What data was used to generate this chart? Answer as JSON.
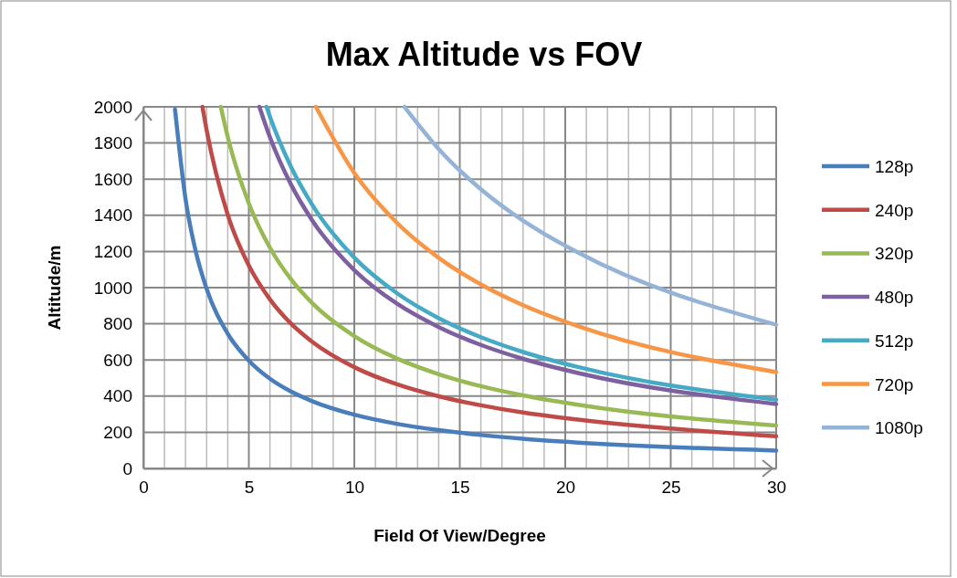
{
  "chart_data": {
    "type": "line",
    "title": "Max Altitude vs FOV",
    "xlabel": "Field Of View/Degree",
    "ylabel": "Altitude/m",
    "xlim": [
      0,
      30
    ],
    "ylim": [
      0,
      2000
    ],
    "xticks": [
      0,
      {
        "value": 1,
        "label": null
      },
      {
        "value": 2,
        "label": null
      },
      {
        "value": 3,
        "label": null
      },
      {
        "value": 4,
        "label": null
      },
      5,
      {
        "value": 6,
        "label": null
      },
      {
        "value": 7,
        "label": null
      },
      {
        "value": 8,
        "label": null
      },
      {
        "value": 9,
        "label": null
      },
      10,
      {
        "value": 11,
        "label": null
      },
      {
        "value": 12,
        "label": null
      },
      {
        "value": 13,
        "label": null
      },
      {
        "value": 14,
        "label": null
      },
      15,
      {
        "value": 16,
        "label": null
      },
      {
        "value": 17,
        "label": null
      },
      {
        "value": 18,
        "label": null
      },
      {
        "value": 19,
        "label": null
      },
      20,
      {
        "value": 21,
        "label": null
      },
      {
        "value": 22,
        "label": null
      },
      {
        "value": 23,
        "label": null
      },
      {
        "value": 24,
        "label": null
      },
      25,
      {
        "value": 26,
        "label": null
      },
      {
        "value": 27,
        "label": null
      },
      {
        "value": 28,
        "label": null
      },
      {
        "value": 29,
        "label": null
      },
      30
    ],
    "yticks": [
      0,
      200,
      400,
      600,
      800,
      1000,
      1200,
      1400,
      1600,
      1800,
      2000
    ],
    "grid": true,
    "legend": "right",
    "marker": "none",
    "line_style": "solid",
    "series": [
      {
        "name": "128p",
        "color": "#4a7ebb",
        "x": [
          1.5,
          2,
          2.5,
          3,
          4,
          5,
          6,
          7,
          8,
          10,
          12,
          14,
          16,
          18,
          20.6,
          30
        ],
        "values": [
          1986,
          1489,
          1192,
          993,
          745,
          596,
          496,
          425,
          372,
          297,
          247,
          212,
          185,
          164,
          143,
          99
        ]
      },
      {
        "name": "240p",
        "color": "#be4b48",
        "x": [
          2.8,
          3,
          4,
          5,
          6,
          7,
          8,
          10,
          12,
          14,
          16,
          18,
          20.6,
          30
        ],
        "values": [
          2000,
          1871,
          1403,
          1122,
          935,
          801,
          701,
          560,
          466,
          399,
          349,
          309,
          270,
          178
        ]
      },
      {
        "name": "320p",
        "color": "#98b954",
        "x": [
          3.67,
          4,
          5,
          6,
          7,
          8,
          10,
          12,
          14,
          16,
          18,
          20.6,
          30
        ],
        "values": [
          2000,
          1833,
          1466,
          1221,
          1046,
          915,
          732,
          609,
          521,
          455,
          404,
          352,
          237
        ]
      },
      {
        "name": "480p",
        "color": "#7d60a0",
        "x": [
          5.5,
          6,
          7,
          8,
          10,
          12,
          14,
          16,
          18,
          20.6,
          30
        ],
        "values": [
          2000,
          1832,
          1570,
          1373,
          1097,
          913,
          782,
          683,
          606,
          528,
          356
        ]
      },
      {
        "name": "512p",
        "color": "#46aac5",
        "x": [
          5.84,
          6,
          7,
          8,
          10,
          12,
          14,
          16,
          18,
          20.6,
          30
        ],
        "values": [
          2000,
          1946,
          1668,
          1459,
          1166,
          971,
          831,
          726,
          644,
          561,
          380
        ]
      },
      {
        "name": "720p",
        "color": "#f79646",
        "x": [
          8.18,
          10,
          12,
          14,
          16,
          18,
          20.6,
          30
        ],
        "values": [
          2000,
          1634,
          1361,
          1165,
          1018,
          903,
          787,
          533
        ]
      },
      {
        "name": "1080p",
        "color": "#95b3d7",
        "x": [
          12.38,
          14,
          16,
          18,
          20.6,
          30
        ],
        "values": [
          2000,
          1767,
          1544,
          1370,
          1194,
          795
        ]
      }
    ]
  }
}
